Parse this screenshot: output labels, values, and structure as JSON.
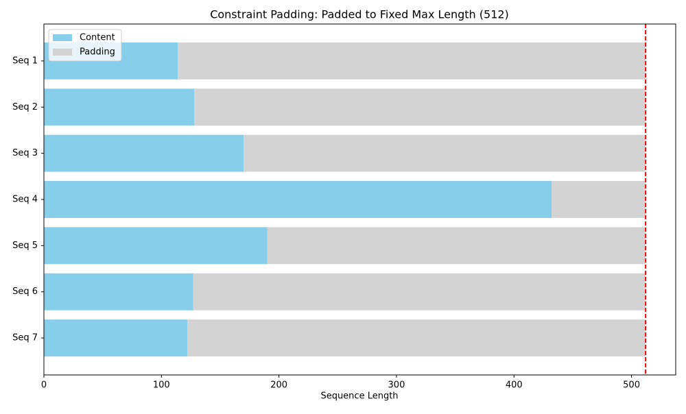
{
  "chart_data": {
    "type": "stacked-barh",
    "title": "Constraint Padding: Padded to Fixed Max Length (512)",
    "x_label": "Sequence Length",
    "categories": [
      "Seq 1",
      "Seq 2",
      "Seq 3",
      "Seq 4",
      "Seq 5",
      "Seq 6",
      "Seq 7"
    ],
    "series": [
      {
        "name": "Content",
        "color": "#87ceeb",
        "values": [
          114,
          128,
          170,
          432,
          190,
          127,
          122
        ]
      },
      {
        "name": "Padding",
        "color": "#d3d3d3",
        "values": [
          398,
          384,
          342,
          80,
          322,
          385,
          390
        ]
      }
    ],
    "reference_line": {
      "value": 512,
      "color": "#ff0000"
    },
    "xlim": [
      0,
      537.6
    ],
    "xticks": [
      0,
      100,
      200,
      300,
      400,
      500
    ],
    "legend": "upper-left"
  }
}
